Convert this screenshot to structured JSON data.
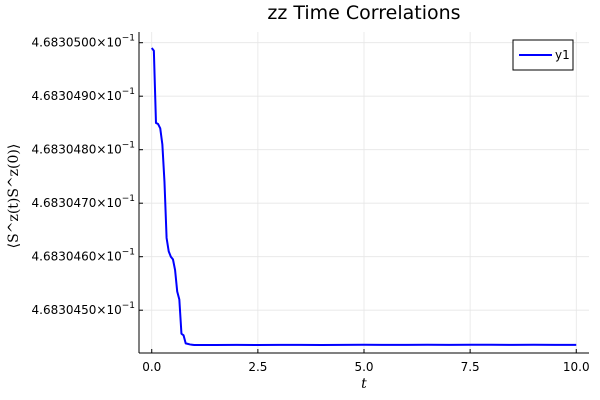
{
  "chart_data": {
    "type": "line",
    "title": "zz Time Correlations",
    "xlabel": "t",
    "ylabel": "⟨S^z(t)S^z(0)⟩",
    "xlim": [
      -0.3,
      10.3
    ],
    "ylim": [
      0.46830442,
      0.46830502
    ],
    "grid": true,
    "legend_position": "top-right",
    "x_ticks": [
      {
        "value": 0.0,
        "label": "0.0"
      },
      {
        "value": 2.5,
        "label": "2.5"
      },
      {
        "value": 5.0,
        "label": "5.0"
      },
      {
        "value": 7.5,
        "label": "7.5"
      },
      {
        "value": 10.0,
        "label": "10.0"
      }
    ],
    "y_ticks": [
      {
        "value": 0.468305,
        "mantissa": "4.6830500×10",
        "exponent": "−1"
      },
      {
        "value": 0.4683049,
        "mantissa": "4.6830490×10",
        "exponent": "−1"
      },
      {
        "value": 0.4683048,
        "mantissa": "4.6830480×10",
        "exponent": "−1"
      },
      {
        "value": 0.4683047,
        "mantissa": "4.6830470×10",
        "exponent": "−1"
      },
      {
        "value": 0.4683046,
        "mantissa": "4.6830460×10",
        "exponent": "−1"
      },
      {
        "value": 0.4683045,
        "mantissa": "4.6830450×10",
        "exponent": "−1"
      }
    ],
    "series": [
      {
        "name": "y1",
        "color": "#0000ff",
        "x": [
          0.0,
          0.05,
          0.1,
          0.15,
          0.2,
          0.25,
          0.3,
          0.35,
          0.4,
          0.45,
          0.5,
          0.55,
          0.6,
          0.65,
          0.7,
          0.75,
          0.8,
          0.85,
          0.9,
          0.95,
          1.0,
          1.1,
          1.2,
          1.5,
          2.0,
          2.5,
          3.0,
          3.5,
          4.0,
          4.5,
          5.0,
          5.5,
          6.0,
          6.5,
          7.0,
          7.5,
          8.0,
          8.5,
          9.0,
          9.5,
          10.0
        ],
        "y": [
          0.46830499,
          0.468304985,
          0.46830485,
          0.468304848,
          0.46830484,
          0.46830481,
          0.46830474,
          0.468304635,
          0.46830461,
          0.4683046,
          0.468304595,
          0.468304575,
          0.468304535,
          0.46830452,
          0.468304456,
          0.468304453,
          0.468304438,
          0.468304437,
          0.468304436,
          0.4683044355,
          0.468304435,
          0.468304435,
          0.468304435,
          0.468304435,
          0.4683044352,
          0.468304435,
          0.4683044352,
          0.4683044351,
          0.468304435,
          0.4683044352,
          0.4683044353,
          0.4683044351,
          0.4683044352,
          0.4683044353,
          0.4683044352,
          0.4683044353,
          0.4683044354,
          0.4683044352,
          0.4683044353,
          0.4683044352,
          0.4683044352
        ]
      }
    ]
  }
}
